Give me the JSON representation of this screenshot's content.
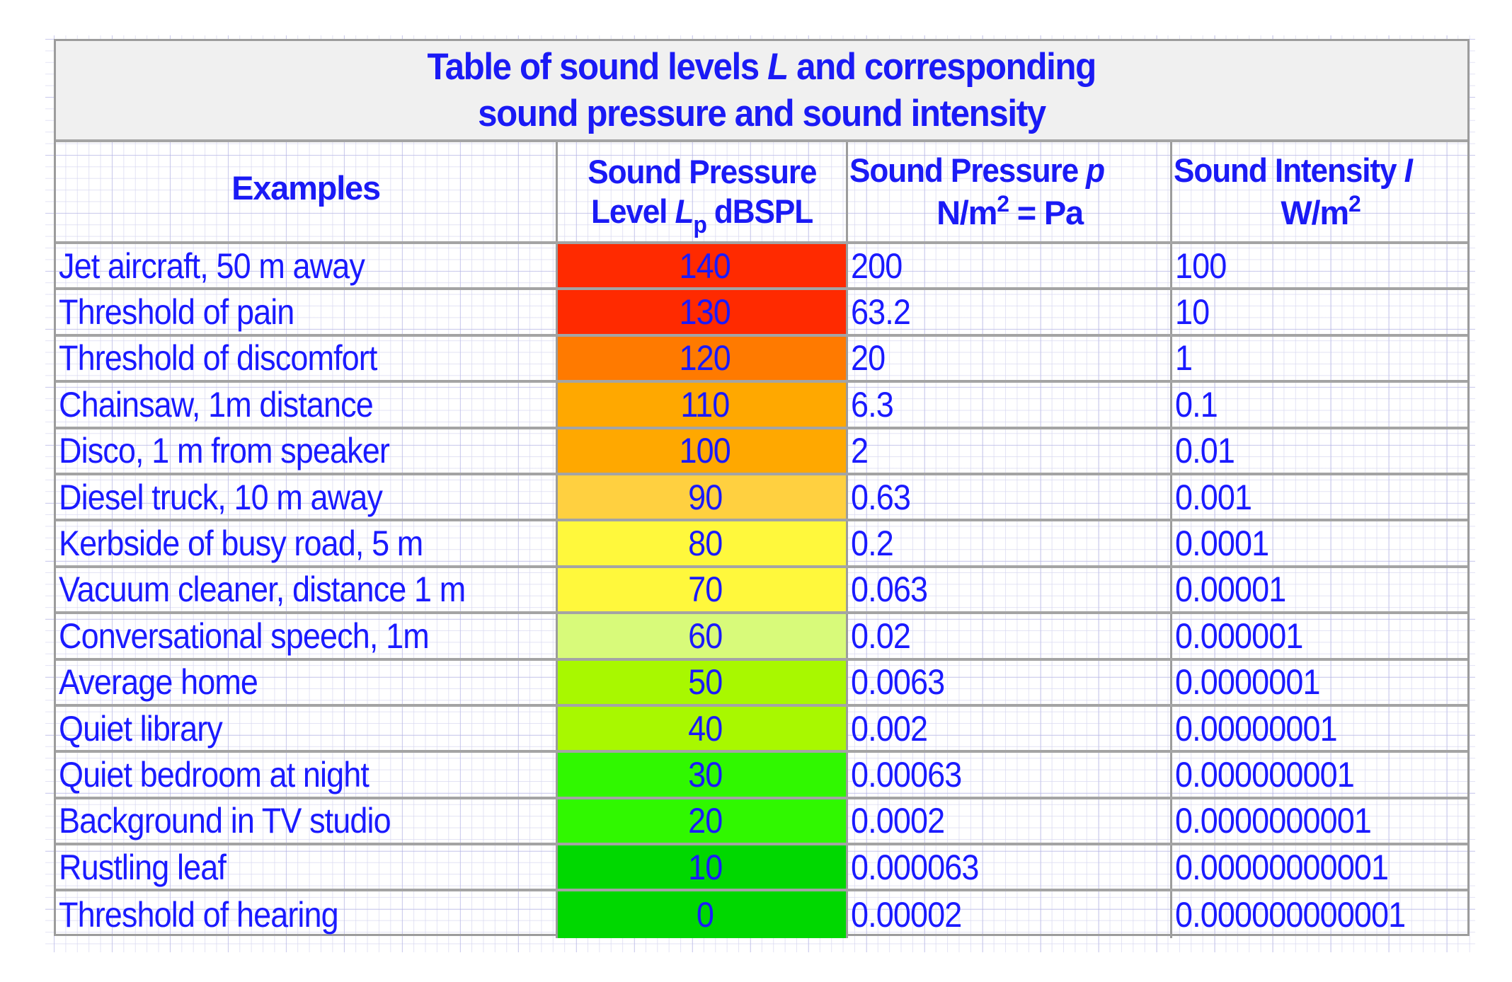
{
  "title": {
    "line1_pre": "Table of sound levels ",
    "line1_var": "L",
    "line1_post": " and corresponding",
    "line2": "sound pressure and sound intensity"
  },
  "headers": {
    "examples": "Examples",
    "spl_line1": "Sound Pressure",
    "spl_line2_pre": "Level ",
    "spl_line2_var": "L",
    "spl_line2_sub": "p",
    "spl_line2_post": " dBSPL",
    "pressure_line1_pre": "Sound Pressure ",
    "pressure_line1_var": "p",
    "pressure_line2_pre": "N/m",
    "pressure_line2_sup": "2",
    "pressure_line2_post": " = Pa",
    "intensity_line1_pre": "Sound Intensity ",
    "intensity_line1_var": "I",
    "intensity_line2_pre": "W/m",
    "intensity_line2_sup": "2"
  },
  "rows": [
    {
      "example": "Jet aircraft, 50 m away",
      "level": "140",
      "pressure": "200",
      "intensity": "100",
      "color": "#ff2a00"
    },
    {
      "example": "Threshold of pain",
      "level": "130",
      "pressure": "63.2",
      "intensity": "10",
      "color": "#ff2a00"
    },
    {
      "example": "Threshold of discomfort",
      "level": "120",
      "pressure": "20",
      "intensity": "1",
      "color": "#ff7a00"
    },
    {
      "example": "Chainsaw, 1m distance",
      "level": "110",
      "pressure": "6.3",
      "intensity": "0.1",
      "color": "#ffa800"
    },
    {
      "example": "Disco, 1 m from speaker",
      "level": "100",
      "pressure": "2",
      "intensity": "0.01",
      "color": "#ffa800"
    },
    {
      "example": "Diesel truck, 10 m away",
      "level": "90",
      "pressure": "0.63",
      "intensity": "0.001",
      "color": "#ffd040"
    },
    {
      "example": "Kerbside of busy road, 5 m",
      "level": "80",
      "pressure": "0.2",
      "intensity": "0.0001",
      "color": "#fff83c"
    },
    {
      "example": "Vacuum cleaner, distance 1 m",
      "level": "70",
      "pressure": "0.063",
      "intensity": "0.00001",
      "color": "#fff83c"
    },
    {
      "example": "Conversational speech, 1m",
      "level": "60",
      "pressure": "0.02",
      "intensity": "0.000001",
      "color": "#d8fa7a"
    },
    {
      "example": "Average home",
      "level": "50",
      "pressure": "0.0063",
      "intensity": "0.0000001",
      "color": "#a8f800"
    },
    {
      "example": "Quiet library",
      "level": "40",
      "pressure": "0.002",
      "intensity": "0.00000001",
      "color": "#a8f800"
    },
    {
      "example": "Quiet bedroom at night",
      "level": "30",
      "pressure": "0.00063",
      "intensity": "0.000000001",
      "color": "#30f800"
    },
    {
      "example": "Background in TV studio",
      "level": "20",
      "pressure": "0.0002",
      "intensity": "0.0000000001",
      "color": "#30f800"
    },
    {
      "example": "Rustling leaf",
      "level": "10",
      "pressure": "0.000063",
      "intensity": "0.00000000001",
      "color": "#00d800"
    },
    {
      "example": "Threshold of hearing",
      "level": "0",
      "pressure": "0.00002",
      "intensity": "0.000000000001",
      "color": "#00d800"
    }
  ],
  "colors": {
    "text": "#1a1aff",
    "title_bg": "#f0f0f0",
    "border": "#a4a4a4"
  }
}
